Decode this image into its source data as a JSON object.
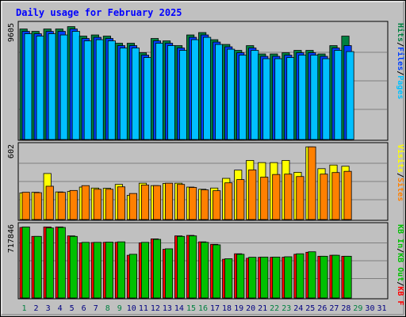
{
  "chart_data": [
    {
      "type": "bar",
      "title": "Daily usage for February 2025",
      "x": [
        1,
        2,
        3,
        4,
        5,
        6,
        7,
        8,
        9,
        10,
        11,
        12,
        13,
        14,
        15,
        16,
        17,
        18,
        19,
        20,
        21,
        22,
        23,
        24,
        25,
        26,
        27,
        28,
        29,
        30,
        31
      ],
      "ymax_label": "9605",
      "ylim": [
        0,
        9605
      ],
      "legend": [
        "Hits",
        "Files",
        "Pages"
      ],
      "series": [
        {
          "name": "Hits",
          "color": "#008040",
          "values": [
            9300,
            9100,
            9300,
            9300,
            9500,
            8700,
            8800,
            8700,
            8100,
            8100,
            7300,
            8500,
            8300,
            7900,
            8800,
            9000,
            8400,
            8000,
            7500,
            7900,
            7200,
            7200,
            7300,
            7500,
            7500,
            7200,
            7900,
            8700,
            0,
            0,
            0
          ]
        },
        {
          "name": "Files",
          "color": "#0040ff",
          "values": [
            9100,
            8900,
            9100,
            9100,
            9300,
            8500,
            8600,
            8500,
            7900,
            7900,
            7100,
            8300,
            8100,
            7700,
            8600,
            8800,
            8200,
            7800,
            7300,
            7700,
            7000,
            7000,
            7100,
            7300,
            7300,
            7000,
            7700,
            7900,
            0,
            0,
            0
          ]
        },
        {
          "name": "Pages",
          "color": "#00c0ff",
          "values": [
            8900,
            8700,
            8900,
            8800,
            9100,
            8300,
            8400,
            8300,
            7700,
            7700,
            6900,
            8100,
            7900,
            7500,
            8400,
            8600,
            8000,
            7600,
            7100,
            7500,
            6800,
            6800,
            6900,
            7100,
            7100,
            6800,
            7500,
            7400,
            0,
            0,
            0
          ]
        }
      ]
    },
    {
      "type": "bar",
      "x": [
        1,
        2,
        3,
        4,
        5,
        6,
        7,
        8,
        9,
        10,
        11,
        12,
        13,
        14,
        15,
        16,
        17,
        18,
        19,
        20,
        21,
        22,
        23,
        24,
        25,
        26,
        27,
        28,
        29,
        30,
        31
      ],
      "ymax_label": "602",
      "ylim": [
        0,
        602
      ],
      "legend": [
        "Visits",
        "Sites"
      ],
      "series": [
        {
          "name": "Visits",
          "color": "#ffff00",
          "values": [
            220,
            225,
            380,
            228,
            232,
            268,
            260,
            258,
            290,
            200,
            300,
            280,
            298,
            300,
            268,
            250,
            260,
            340,
            408,
            488,
            470,
            470,
            488,
            390,
            600,
            420,
            450,
            440,
            0,
            0,
            0
          ]
        },
        {
          "name": "Sites",
          "color": "#ff8000",
          "values": [
            225,
            222,
            275,
            225,
            240,
            280,
            250,
            250,
            270,
            215,
            285,
            280,
            300,
            290,
            265,
            245,
            238,
            303,
            330,
            410,
            350,
            372,
            375,
            355,
            600,
            375,
            388,
            398,
            0,
            0,
            0
          ]
        }
      ]
    },
    {
      "type": "bar",
      "x": [
        1,
        2,
        3,
        4,
        5,
        6,
        7,
        8,
        9,
        10,
        11,
        12,
        13,
        14,
        15,
        16,
        17,
        18,
        19,
        20,
        21,
        22,
        23,
        24,
        25,
        26,
        27,
        28,
        29,
        30,
        31
      ],
      "ymax_label": "717846",
      "ylim": [
        0,
        717846
      ],
      "legend": [
        "KB In",
        "KB Out",
        "KB F"
      ],
      "series": [
        {
          "name": "KB F",
          "color": "#ff0000",
          "values": [
            710000,
            620000,
            715000,
            715000,
            625000,
            555000,
            558000,
            560000,
            560000,
            430000,
            555000,
            595000,
            490000,
            625000,
            630000,
            565000,
            540000,
            390000,
            445000,
            400000,
            410000,
            410000,
            410000,
            440000,
            460000,
            420000,
            430000,
            420000,
            0,
            0,
            0
          ]
        },
        {
          "name": "KB Out",
          "color": "#00c000",
          "values": [
            715000,
            620000,
            705000,
            710000,
            620000,
            560000,
            560000,
            562000,
            565000,
            440000,
            560000,
            590000,
            495000,
            620000,
            625000,
            560000,
            535000,
            395000,
            440000,
            410000,
            412000,
            412000,
            415000,
            445000,
            465000,
            420000,
            430000,
            420000,
            0,
            0,
            0
          ]
        },
        {
          "name": "KB In",
          "color": "#00c000",
          "values": [
            0,
            0,
            0,
            0,
            0,
            0,
            0,
            0,
            0,
            0,
            0,
            0,
            0,
            0,
            0,
            0,
            0,
            0,
            0,
            0,
            0,
            0,
            0,
            0,
            0,
            0,
            0,
            0,
            0,
            0,
            0
          ]
        }
      ]
    }
  ],
  "labels": {
    "title": "Daily usage for February 2025",
    "top_legend": [
      {
        "text": "Hits",
        "color": "#008040"
      },
      {
        "text": "/",
        "color": "#000000"
      },
      {
        "text": "Files",
        "color": "#0040ff"
      },
      {
        "text": "/",
        "color": "#000000"
      },
      {
        "text": "Pages",
        "color": "#00c0ff"
      }
    ],
    "mid_legend": [
      {
        "text": "Visits",
        "color": "#ffff00"
      },
      {
        "text": "/",
        "color": "#000000"
      },
      {
        "text": "Sites",
        "color": "#ff8000"
      }
    ],
    "bottom_legend": [
      {
        "text": "KB In",
        "color": "#00c000"
      },
      {
        "text": "/",
        "color": "#000000"
      },
      {
        "text": "KB Out",
        "color": "#00c000"
      },
      {
        "text": "/",
        "color": "#000000"
      },
      {
        "text": "KB F",
        "color": "#ff0000"
      }
    ],
    "weekend_days": [
      1,
      8,
      9,
      15,
      16,
      22,
      23,
      29
    ],
    "colors": {
      "bg": "#c0c0c0",
      "panel": "#c0c0c0",
      "grid": "#808080",
      "title": "#0000ff",
      "day_normal": "#000080",
      "day_weekend": "#008040"
    }
  }
}
